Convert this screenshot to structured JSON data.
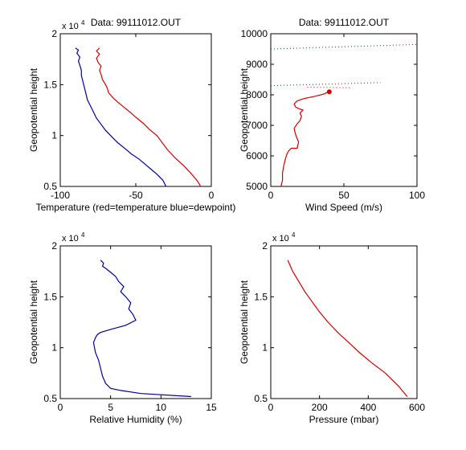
{
  "chart_data": [
    {
      "type": "line",
      "title": "Data: 99111012.OUT",
      "xlabel": "Temperature (red=temperature blue=dewpoint)",
      "ylabel": "Geopotential height",
      "exponent_note": "x 10",
      "exponent_power": "4",
      "xlim": [
        -100,
        0
      ],
      "ylim": [
        0.5,
        2
      ],
      "xticks": [
        -100,
        -50,
        0
      ],
      "yticks": [
        0.5,
        1,
        1.5,
        2
      ],
      "xtick_labels": [
        "-100",
        "-50",
        "0"
      ],
      "ytick_labels": [
        "0.5",
        "1",
        "1.5",
        "2"
      ],
      "series": [
        {
          "color": "#cc0000",
          "x": [
            -7,
            -9,
            -13,
            -18,
            -24,
            -29,
            -32,
            -36,
            -41,
            -45,
            -50,
            -53,
            -58,
            -62,
            -65,
            -68,
            -69,
            -70,
            -72,
            -73,
            -74,
            -73,
            -75,
            -76,
            -74,
            -76,
            -74
          ],
          "y": [
            0.5,
            0.55,
            0.62,
            0.7,
            0.78,
            0.86,
            0.92,
            1.0,
            1.06,
            1.12,
            1.18,
            1.22,
            1.28,
            1.33,
            1.37,
            1.42,
            1.47,
            1.5,
            1.55,
            1.6,
            1.64,
            1.68,
            1.72,
            1.76,
            1.8,
            1.83,
            1.86
          ]
        },
        {
          "color": "#000099",
          "x": [
            -30,
            -32,
            -36,
            -40,
            -44,
            -48,
            -53,
            -57,
            -62,
            -66,
            -70,
            -73,
            -76,
            -78,
            -80,
            -82,
            -83,
            -84,
            -85,
            -86,
            -86,
            -87,
            -88,
            -87,
            -89,
            -88,
            -90
          ],
          "y": [
            0.5,
            0.56,
            0.62,
            0.67,
            0.72,
            0.77,
            0.82,
            0.87,
            0.93,
            0.99,
            1.05,
            1.11,
            1.17,
            1.23,
            1.29,
            1.35,
            1.41,
            1.47,
            1.53,
            1.59,
            1.64,
            1.69,
            1.73,
            1.77,
            1.81,
            1.84,
            1.86
          ]
        }
      ]
    },
    {
      "type": "line",
      "title": "Data: 99111012.OUT",
      "xlabel": "Wind Speed (m/s)",
      "ylabel": "Geopotential height",
      "xlim": [
        0,
        100
      ],
      "ylim": [
        5000,
        10000
      ],
      "xticks": [
        0,
        50,
        100
      ],
      "yticks": [
        5000,
        6000,
        7000,
        8000,
        9000,
        10000
      ],
      "xtick_labels": [
        "0",
        "50",
        "100"
      ],
      "ytick_labels": [
        "5000",
        "6000",
        "7000",
        "8000",
        "9000",
        "10000"
      ],
      "series": [
        {
          "color": "#cc0000",
          "x": [
            7,
            8,
            8,
            9,
            10,
            11,
            12,
            14,
            18,
            19,
            17,
            16,
            18,
            20,
            21,
            20,
            22,
            19,
            17,
            16,
            18,
            21,
            25,
            30,
            36,
            40
          ],
          "y": [
            5000,
            5200,
            5450,
            5700,
            5900,
            6050,
            6150,
            6250,
            6250,
            6450,
            6700,
            6900,
            7050,
            7150,
            7300,
            7400,
            7500,
            7550,
            7600,
            7700,
            7800,
            7850,
            7900,
            7950,
            8020,
            8100
          ]
        }
      ],
      "dotted_series": [
        {
          "color": "#cc0000",
          "x": [
            0,
            100
          ],
          "y": [
            9500,
            9650
          ]
        },
        {
          "color": "#cc0000",
          "x": [
            0,
            75
          ],
          "y": [
            8300,
            8400
          ]
        },
        {
          "color": "#cc0000",
          "x": [
            25,
            55
          ],
          "y": [
            8250,
            8230
          ]
        }
      ],
      "marker": {
        "x": 40,
        "y": 8100,
        "color": "#cc0000"
      }
    },
    {
      "type": "line",
      "xlabel": "Relative Humidity (%)",
      "ylabel": "Geopotential height",
      "exponent_note": "x 10",
      "exponent_power": "4",
      "xlim": [
        0,
        15
      ],
      "ylim": [
        0.5,
        2
      ],
      "xticks": [
        0,
        5,
        10,
        15
      ],
      "yticks": [
        0.5,
        1,
        1.5,
        2
      ],
      "xtick_labels": [
        "0",
        "5",
        "10",
        "15"
      ],
      "ytick_labels": [
        "0.5",
        "1",
        "1.5",
        "2"
      ],
      "series": [
        {
          "color": "#000099",
          "x": [
            13,
            8,
            6,
            5,
            4.5,
            4.2,
            4.0,
            3.8,
            3.5,
            3.4,
            3.3,
            3.5,
            3.7,
            4.0,
            5.0,
            6.5,
            7.5,
            7.2,
            6.8,
            7.0,
            6.5,
            6.0,
            6.3,
            5.8,
            5.5,
            5.0,
            4.5,
            4.2,
            4.3,
            4.0
          ],
          "y": [
            0.52,
            0.55,
            0.58,
            0.6,
            0.65,
            0.72,
            0.8,
            0.88,
            0.95,
            1.0,
            1.05,
            1.1,
            1.13,
            1.15,
            1.18,
            1.22,
            1.27,
            1.33,
            1.38,
            1.44,
            1.5,
            1.55,
            1.6,
            1.65,
            1.7,
            1.74,
            1.78,
            1.8,
            1.83,
            1.86
          ]
        }
      ]
    },
    {
      "type": "line",
      "xlabel": "Pressure (mbar)",
      "ylabel": "Geopotential height",
      "exponent_note": "x 10",
      "exponent_power": "4",
      "xlim": [
        0,
        600
      ],
      "ylim": [
        0.5,
        2
      ],
      "xticks": [
        0,
        200,
        400,
        600
      ],
      "yticks": [
        0.5,
        1,
        1.5,
        2
      ],
      "xtick_labels": [
        "0",
        "200",
        "400",
        "600"
      ],
      "ytick_labels": [
        "0.5",
        "1",
        "1.5",
        "2"
      ],
      "series": [
        {
          "color": "#cc0000",
          "x": [
            70,
            90,
            115,
            140,
            170,
            200,
            235,
            275,
            320,
            365,
            415,
            470,
            525,
            560
          ],
          "y": [
            1.86,
            1.75,
            1.65,
            1.55,
            1.45,
            1.35,
            1.25,
            1.15,
            1.05,
            0.95,
            0.85,
            0.75,
            0.62,
            0.52
          ]
        }
      ]
    }
  ]
}
